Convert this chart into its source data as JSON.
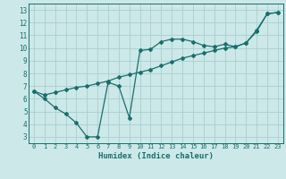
{
  "xlabel": "Humidex (Indice chaleur)",
  "background_color": "#cce8e8",
  "grid_color": "#aacece",
  "line_color": "#1a6e6e",
  "xlim": [
    -0.5,
    23.5
  ],
  "ylim": [
    2.5,
    13.5
  ],
  "xticks": [
    0,
    1,
    2,
    3,
    4,
    5,
    6,
    7,
    8,
    9,
    10,
    11,
    12,
    13,
    14,
    15,
    16,
    17,
    18,
    19,
    20,
    21,
    22,
    23
  ],
  "yticks": [
    3,
    4,
    5,
    6,
    7,
    8,
    9,
    10,
    11,
    12,
    13
  ],
  "line1_x": [
    0,
    1,
    2,
    3,
    4,
    5,
    6,
    7,
    8,
    9,
    10,
    11,
    12,
    13,
    14,
    15,
    16,
    17,
    18,
    19,
    20,
    21,
    22,
    23
  ],
  "line1_y": [
    6.6,
    6.0,
    5.3,
    4.8,
    4.1,
    3.0,
    3.0,
    7.3,
    7.0,
    4.5,
    9.8,
    9.9,
    10.5,
    10.7,
    10.7,
    10.5,
    10.2,
    10.1,
    10.3,
    10.1,
    10.4,
    11.3,
    12.7,
    12.8
  ],
  "line2_x": [
    0,
    1,
    2,
    3,
    4,
    5,
    6,
    7,
    8,
    9,
    10,
    11,
    12,
    13,
    14,
    15,
    16,
    17,
    18,
    19,
    20,
    21,
    22,
    23
  ],
  "line2_y": [
    6.6,
    6.3,
    6.5,
    6.7,
    6.9,
    7.0,
    7.2,
    7.4,
    7.7,
    7.9,
    8.1,
    8.3,
    8.6,
    8.9,
    9.2,
    9.4,
    9.6,
    9.8,
    10.0,
    10.1,
    10.4,
    11.4,
    12.7,
    12.8
  ],
  "marker": "D",
  "marker_size": 2.0,
  "line_width": 0.9,
  "font_size_x": 5.0,
  "font_size_y": 5.5,
  "xlabel_font_size": 6.5
}
